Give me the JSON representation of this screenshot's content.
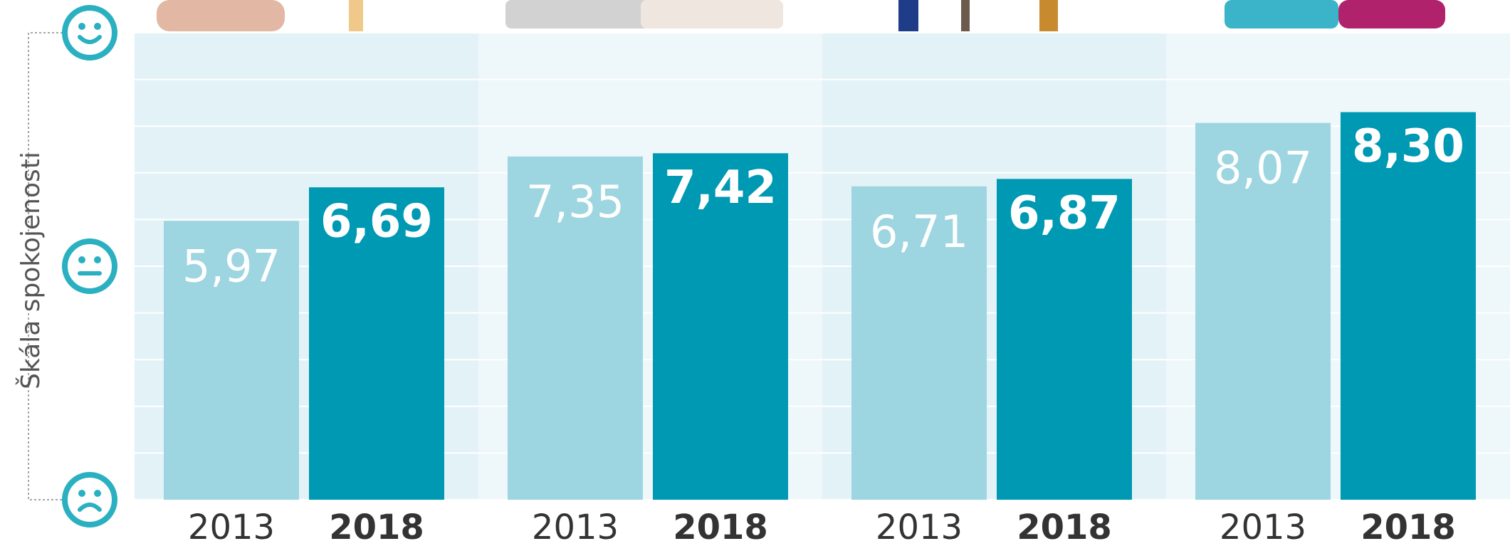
{
  "chart_data": {
    "type": "bar",
    "y_label": "Škála spokojenosti",
    "categories": [
      null,
      null,
      null,
      null
    ],
    "series": [
      {
        "name": "2013",
        "color": "#9dd5e0",
        "values": [
          5.97,
          7.35,
          6.71,
          8.07
        ],
        "value_labels": [
          "5,97",
          "7,35",
          "6,71",
          "8,07"
        ]
      },
      {
        "name": "2018",
        "color": "#0099b3",
        "values": [
          6.69,
          7.42,
          6.87,
          8.3
        ],
        "value_labels": [
          "6,69",
          "7,42",
          "6,87",
          "8,30"
        ]
      }
    ],
    "ylim": [
      0,
      10
    ],
    "yticks": [
      0,
      1,
      2,
      3,
      4,
      5,
      6,
      7,
      8,
      9,
      10
    ],
    "grid": true
  }
}
